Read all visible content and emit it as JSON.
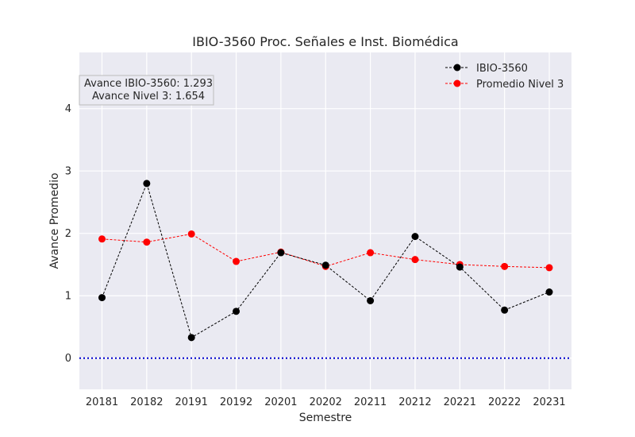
{
  "chart_data": {
    "type": "line",
    "title": "IBIO-3560 Proc. Señales e Inst. Biomédica",
    "xlabel": "Semestre",
    "ylabel": "Avance Promedio",
    "categories": [
      "20181",
      "20182",
      "20191",
      "20192",
      "20201",
      "20202",
      "20211",
      "20212",
      "20221",
      "20222",
      "20231"
    ],
    "ylim": [
      -0.5,
      4.9
    ],
    "yticks": [
      0,
      1,
      2,
      3,
      4
    ],
    "grid": true,
    "legend_position": "top-right",
    "reference_line": {
      "y": 0,
      "color": "#0000cc",
      "style": "dotted"
    },
    "series": [
      {
        "name": "IBIO-3560",
        "color": "#000000",
        "values": [
          0.97,
          2.8,
          0.33,
          0.75,
          1.69,
          1.49,
          0.92,
          1.95,
          1.46,
          0.77,
          1.06
        ]
      },
      {
        "name": "Promedio Nivel 3",
        "color": "#ff0000",
        "values": [
          1.91,
          1.86,
          1.99,
          1.55,
          1.7,
          1.47,
          1.69,
          1.58,
          1.5,
          1.47,
          1.45
        ]
      }
    ],
    "annotation": {
      "lines": [
        "Avance IBIO-3560: 1.293",
        "Avance Nivel 3: 1.654"
      ],
      "position": "top-left"
    }
  }
}
